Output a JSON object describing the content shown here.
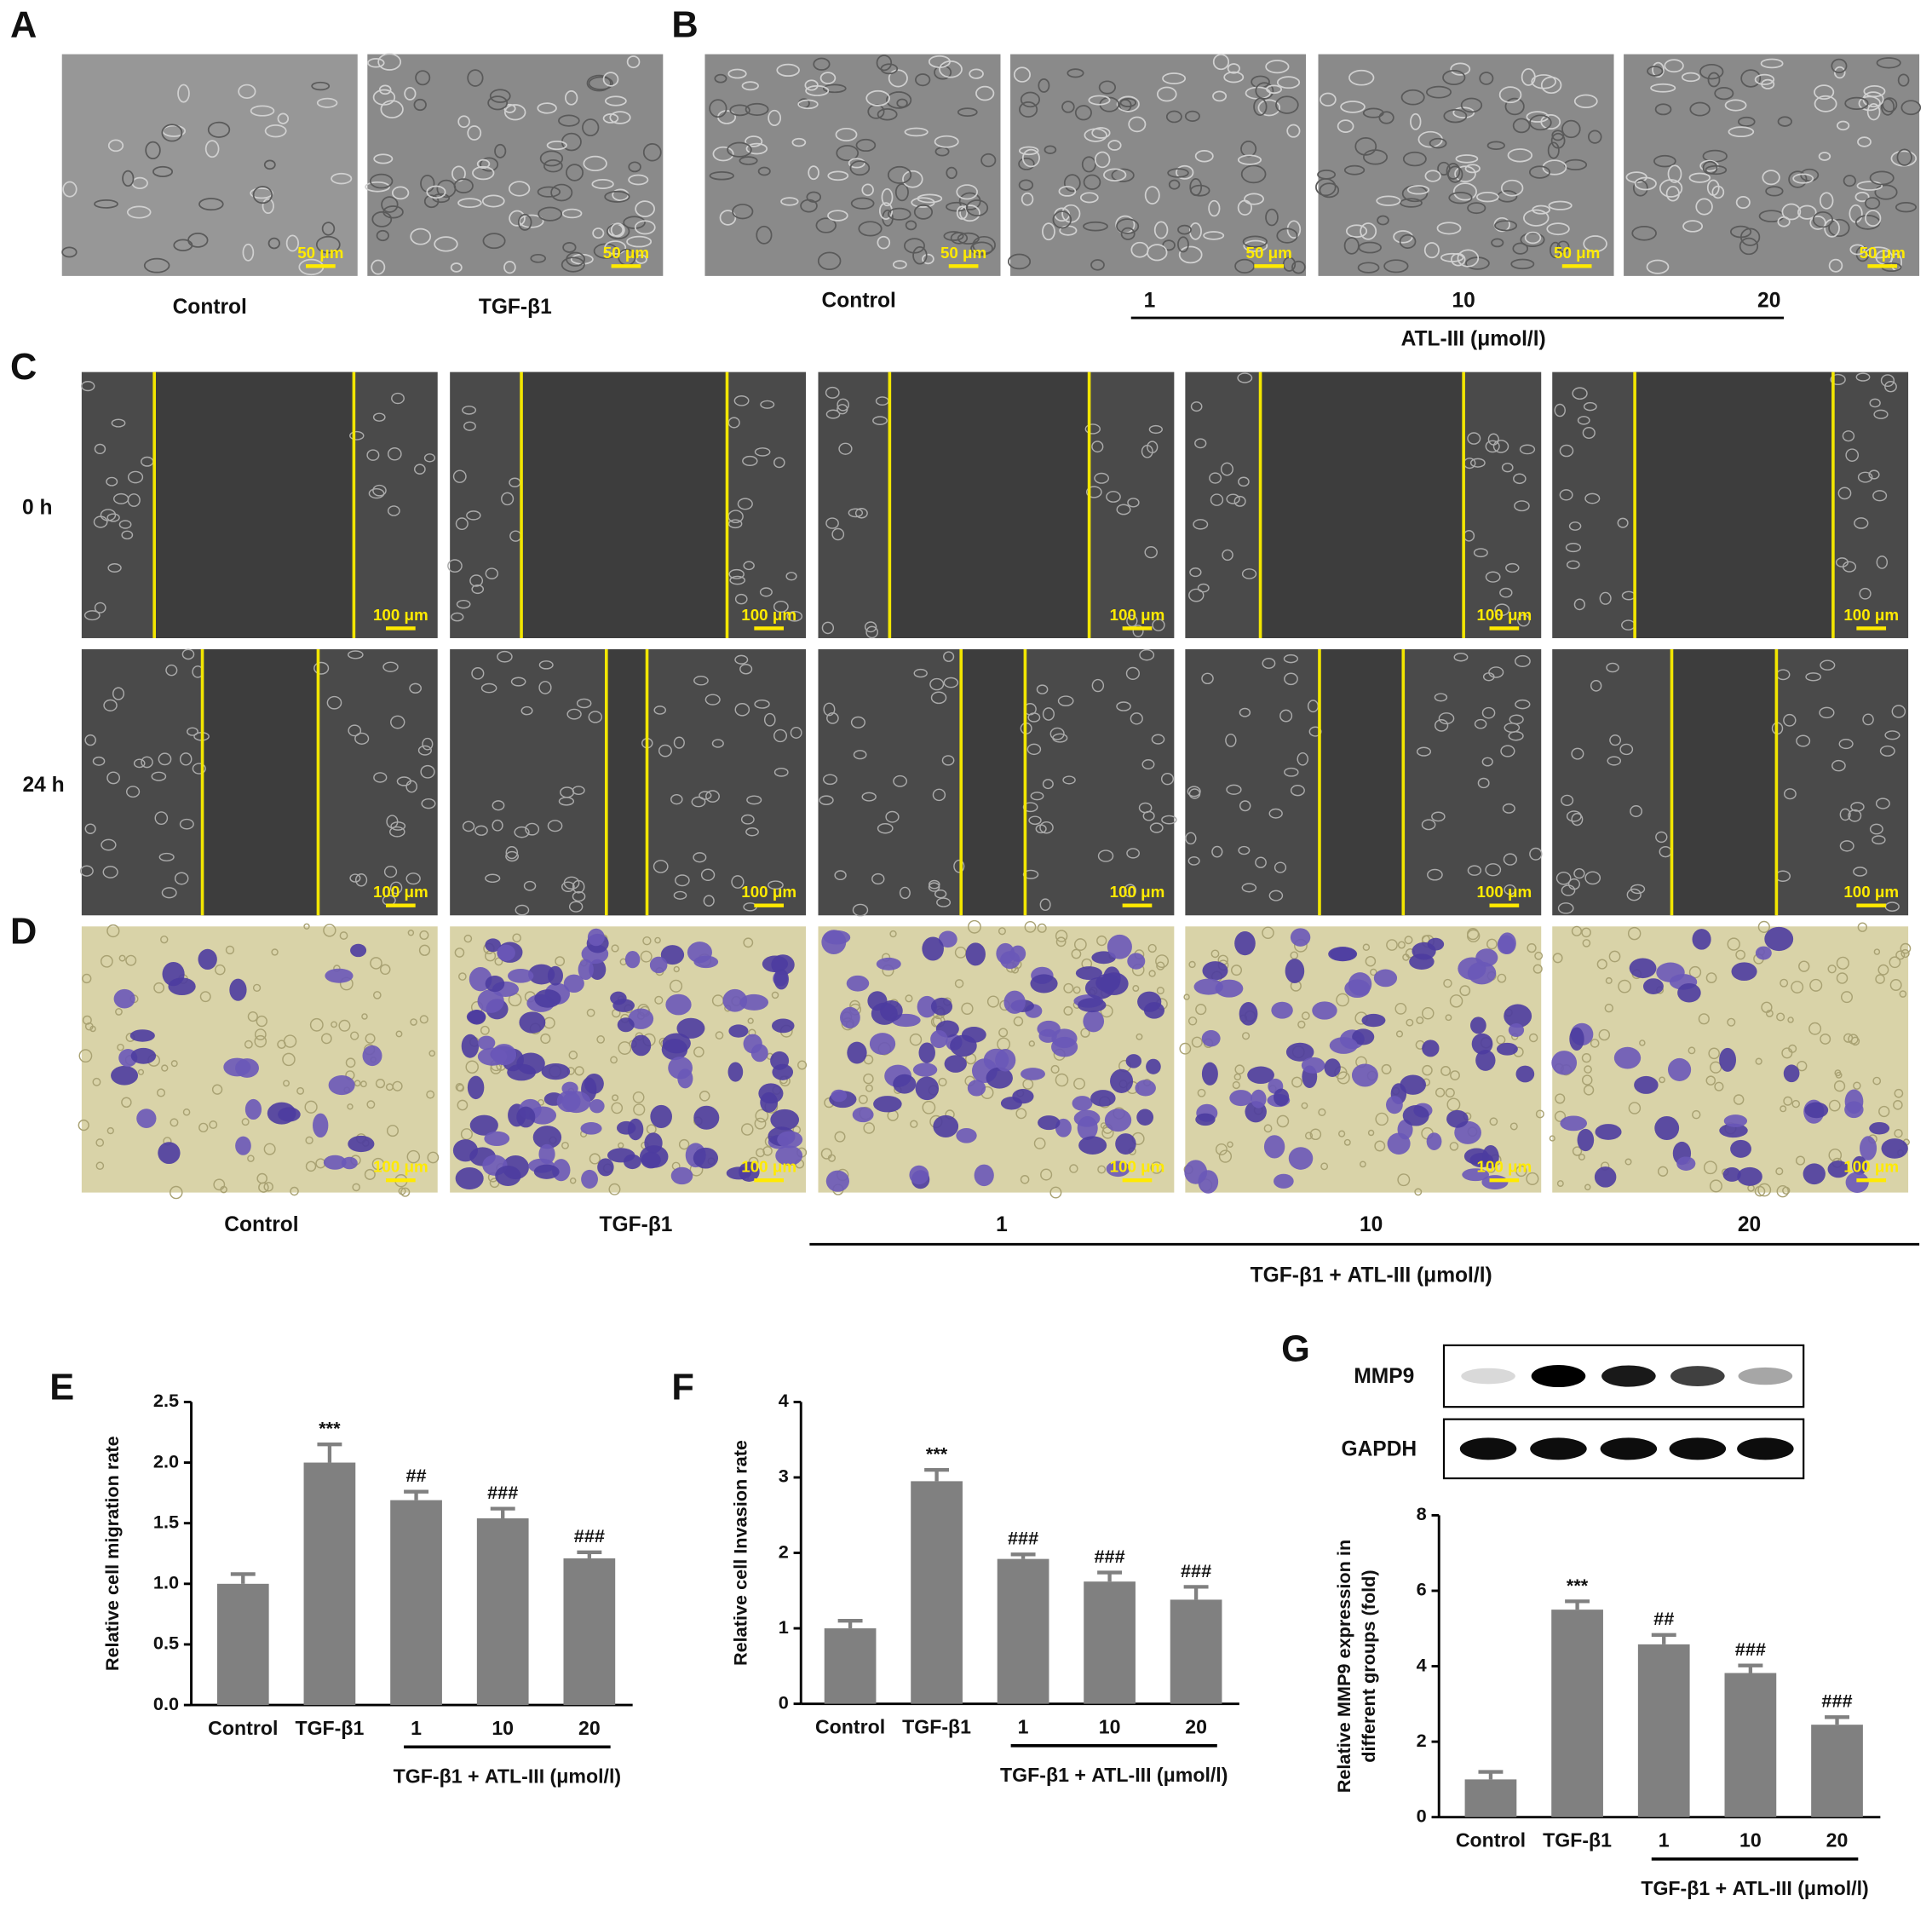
{
  "panel_a": {
    "label": "A",
    "captions": [
      "Control",
      "TGF-β1"
    ],
    "scale_bar": "50 μm"
  },
  "panel_b": {
    "label": "B",
    "captions": [
      "Control",
      "1",
      "10",
      "20"
    ],
    "group_label": "ATL-III (μmol/l)",
    "scale_bar": "50 μm"
  },
  "panel_c": {
    "label": "C",
    "rows": [
      "0 h",
      "24 h"
    ],
    "scale_bar": "100 μm"
  },
  "panel_d": {
    "label": "D",
    "captions": [
      "Control",
      "TGF-β1",
      "1",
      "10",
      "20"
    ],
    "group_label": "TGF-β1 + ATL-III (μmol/l)",
    "scale_bar": "100 μm"
  },
  "blot": {
    "bands": [
      "MMP9",
      "GAPDH"
    ]
  },
  "chart_data": [
    {
      "type": "bar",
      "panel_label": "E",
      "ylabel": [
        "Relative cell migration rate"
      ],
      "categories": [
        "Control",
        "TGF-β1",
        "1",
        "10",
        "20"
      ],
      "group_label": "TGF-β1 + ATL-III (μmol/l)",
      "values": [
        1.0,
        2.0,
        1.69,
        1.54,
        1.21
      ],
      "errors": [
        0.08,
        0.15,
        0.07,
        0.08,
        0.05
      ],
      "annotations": [
        null,
        "***",
        "##",
        "###",
        "###"
      ],
      "color": "#808080",
      "ylim": [
        0,
        2.5
      ],
      "yticks": [
        {
          "value": 0,
          "label": "0.0"
        },
        {
          "value": 0.5,
          "label": "0.5"
        },
        {
          "value": 1,
          "label": "1.0"
        },
        {
          "value": 1.5,
          "label": "1.5"
        },
        {
          "value": 2,
          "label": "2.0"
        },
        {
          "value": 2.5,
          "label": "2.5"
        }
      ]
    },
    {
      "type": "bar",
      "panel_label": "F",
      "ylabel": [
        "Relative cell Invasion rate"
      ],
      "categories": [
        "Control",
        "TGF-β1",
        "1",
        "10",
        "20"
      ],
      "group_label": "TGF-β1 + ATL-III (μmol/l)",
      "values": [
        1.0,
        2.95,
        1.92,
        1.62,
        1.38
      ],
      "errors": [
        0.1,
        0.15,
        0.06,
        0.12,
        0.17
      ],
      "annotations": [
        null,
        "***",
        "###",
        "###",
        "###"
      ],
      "color": "#808080",
      "ylim": [
        0,
        4
      ],
      "yticks": [
        0,
        1,
        2,
        3,
        4
      ]
    },
    {
      "type": "bar",
      "panel_label": "G",
      "ylabel": [
        "Relative MMP9 expression in",
        "different groups (fold)"
      ],
      "categories": [
        "Control",
        "TGF-β1",
        "1",
        "10",
        "20"
      ],
      "group_label": "TGF-β1 + ATL-III (μmol/l)",
      "values": [
        1.0,
        5.5,
        4.58,
        3.82,
        2.45
      ],
      "errors": [
        0.2,
        0.22,
        0.25,
        0.2,
        0.2
      ],
      "annotations": [
        null,
        "***",
        "##",
        "###",
        "###"
      ],
      "color": "#808080",
      "ylim": [
        0,
        8
      ],
      "yticks": [
        0,
        2,
        4,
        6,
        8
      ]
    }
  ]
}
